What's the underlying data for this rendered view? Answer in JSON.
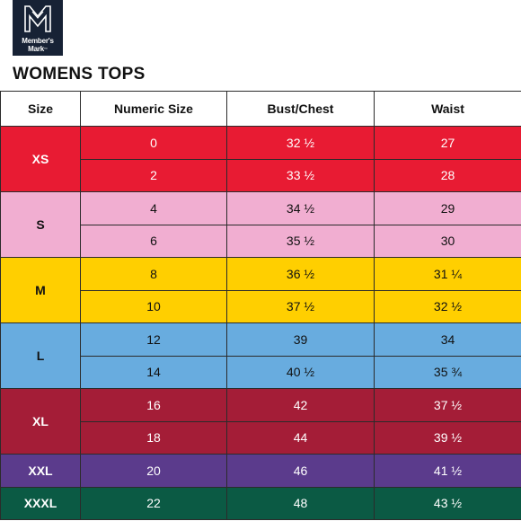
{
  "brand": {
    "line1": "Member's",
    "line2": "Mark",
    "tm": "™",
    "logo_icon": "mm-monogram-icon",
    "logo_color": "#172235"
  },
  "title": "WOMENS TOPS",
  "table": {
    "headers": [
      "Size",
      "Numeric Size",
      "Bust/Chest",
      "Waist"
    ],
    "groups": [
      {
        "size": "XS",
        "colors": {
          "dark": "#e81b33",
          "light": "#e81b33",
          "text": "#ffffff"
        },
        "rows": [
          {
            "numeric": "0",
            "bust": "32 ½",
            "waist": "27"
          },
          {
            "numeric": "2",
            "bust": "33 ½",
            "waist": "28"
          }
        ]
      },
      {
        "size": "S",
        "colors": {
          "dark": "#f1aed1",
          "light": "#f1aed1",
          "text": "#111111"
        },
        "rows": [
          {
            "numeric": "4",
            "bust": "34 ½",
            "waist": "29"
          },
          {
            "numeric": "6",
            "bust": "35 ½",
            "waist": "30"
          }
        ]
      },
      {
        "size": "M",
        "colors": {
          "dark": "#ffcf00",
          "light": "#ffcf00",
          "text": "#111111"
        },
        "rows": [
          {
            "numeric": "8",
            "bust": "36 ½",
            "waist": "31 ¼"
          },
          {
            "numeric": "10",
            "bust": "37 ½",
            "waist": "32 ½"
          }
        ]
      },
      {
        "size": "L",
        "colors": {
          "dark": "#68acdf",
          "light": "#68acdf",
          "text": "#111111"
        },
        "rows": [
          {
            "numeric": "12",
            "bust": "39",
            "waist": "34"
          },
          {
            "numeric": "14",
            "bust": "40 ½",
            "waist": "35 ¾"
          }
        ]
      },
      {
        "size": "XL",
        "colors": {
          "dark": "#a41d37",
          "light": "#a41d37",
          "text": "#ffffff"
        },
        "rows": [
          {
            "numeric": "16",
            "bust": "42",
            "waist": "37 ½"
          },
          {
            "numeric": "18",
            "bust": "44",
            "waist": "39 ½"
          }
        ]
      },
      {
        "size": "XXL",
        "colors": {
          "dark": "#5b3b8c",
          "light": "#5b3b8c",
          "text": "#ffffff"
        },
        "rows": [
          {
            "numeric": "20",
            "bust": "46",
            "waist": "41 ½"
          }
        ]
      },
      {
        "size": "XXXL",
        "colors": {
          "dark": "#0b5a44",
          "light": "#0b5a44",
          "text": "#ffffff"
        },
        "rows": [
          {
            "numeric": "22",
            "bust": "48",
            "waist": "43 ½"
          }
        ]
      }
    ]
  }
}
